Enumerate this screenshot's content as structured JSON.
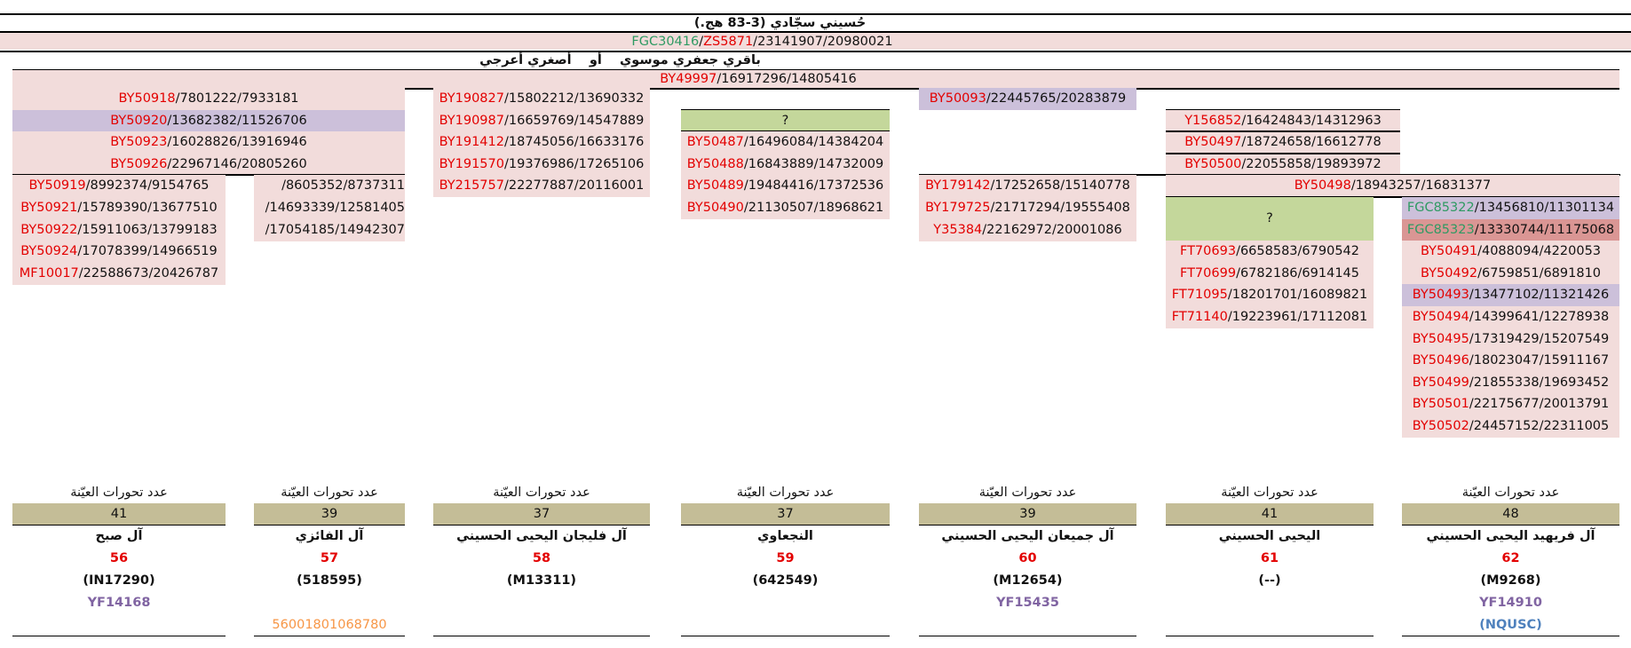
{
  "title": "حُسيني سجّادي (3-83 هج.)",
  "root_snp": {
    "a": "FGC30416",
    "b": "ZS5871",
    "c": "23141907",
    "d": "20980021"
  },
  "subtitle": "باقري جعفري موسوي    أو    أصغري أعرجي",
  "main_snp": {
    "a": "BY49997",
    "b": "16917296",
    "c": "14805416"
  },
  "col1_top": [
    {
      "a": "BY50918",
      "b": "7801222",
      "c": "7933181"
    },
    {
      "a": "BY50920",
      "b": "13682382",
      "c": "11526706"
    },
    {
      "a": "BY50923",
      "b": "16028826",
      "c": "13916946"
    },
    {
      "a": "BY50926",
      "b": "22967146",
      "c": "20805260"
    }
  ],
  "col1a": [
    {
      "a": "BY50919",
      "b": "8992374",
      "c": "9154765"
    },
    {
      "a": "BY50921",
      "b": "15789390",
      "c": "13677510"
    },
    {
      "a": "BY50922",
      "b": "15911063",
      "c": "13799183"
    },
    {
      "a": "BY50924",
      "b": "17078399",
      "c": "14966519"
    },
    {
      "a": "MF10017",
      "b": "22588673",
      "c": "20426787"
    }
  ],
  "col1b": [
    {
      "a": "",
      "b": "8605352",
      "c": "8737311"
    },
    {
      "a": "",
      "b": "14693339",
      "c": "12581405"
    },
    {
      "a": "",
      "b": "17054185",
      "c": "14942307"
    }
  ],
  "col3": [
    {
      "a": "BY190827",
      "b": "15802212",
      "c": "13690332"
    },
    {
      "a": "BY190987",
      "b": "16659769",
      "c": "14547889"
    },
    {
      "a": "BY191412",
      "b": "18745056",
      "c": "16633176"
    },
    {
      "a": "BY191570",
      "b": "19376986",
      "c": "17265106"
    },
    {
      "a": "BY215757",
      "b": "22277887",
      "c": "20116001"
    }
  ],
  "col4_q": "?",
  "col4": [
    {
      "a": "BY50487",
      "b": "16496084",
      "c": "14384204"
    },
    {
      "a": "BY50488",
      "b": "16843889",
      "c": "14732009"
    },
    {
      "a": "BY50489",
      "b": "19484416",
      "c": "17372536"
    },
    {
      "a": "BY50490",
      "b": "21130507",
      "c": "18968621"
    }
  ],
  "right_top": {
    "a": "BY50093",
    "b": "22445765",
    "c": "20283879"
  },
  "col6_top": [
    {
      "a": "Y156852",
      "b": "16424843",
      "c": "14312963"
    },
    {
      "a": "BY50497",
      "b": "18724658",
      "c": "16612778"
    },
    {
      "a": "BY50500",
      "b": "22055858",
      "c": "19893972"
    }
  ],
  "col5": [
    {
      "a": "BY179142",
      "b": "17252658",
      "c": "15140778"
    },
    {
      "a": "BY179725",
      "b": "21717294",
      "c": "19555408"
    },
    {
      "a": "Y35384",
      "b": "22162972",
      "c": "20001086"
    }
  ],
  "mid_snp": {
    "a": "BY50498",
    "b": "18943257",
    "c": "16831377"
  },
  "col6_q": "?",
  "col6": [
    {
      "a": "FT70693",
      "b": "6658583",
      "c": "6790542"
    },
    {
      "a": "FT70699",
      "b": "6782186",
      "c": "6914145"
    },
    {
      "a": "FT71095",
      "b": "18201701",
      "c": "16089821"
    },
    {
      "a": "FT71140",
      "b": "19223961",
      "c": "17112081"
    }
  ],
  "col7_green": [
    {
      "a": "FGC85322",
      "b": "13456810",
      "c": "11301134"
    },
    {
      "a": "FGC85323",
      "b": "13330744",
      "c": "11175068"
    }
  ],
  "col7": [
    {
      "a": "BY50491",
      "b": "4088094",
      "c": "4220053"
    },
    {
      "a": "BY50492",
      "b": "6759851",
      "c": "6891810"
    },
    {
      "a": "BY50493",
      "b": "13477102",
      "c": "11321426"
    },
    {
      "a": "BY50494",
      "b": "14399641",
      "c": "12278938"
    },
    {
      "a": "BY50495",
      "b": "17319429",
      "c": "15207549"
    },
    {
      "a": "BY50496",
      "b": "18023047",
      "c": "15911167"
    },
    {
      "a": "BY50499",
      "b": "21855338",
      "c": "19693452"
    },
    {
      "a": "BY50501",
      "b": "22175677",
      "c": "20013791"
    },
    {
      "a": "BY50502",
      "b": "24457152",
      "c": "22311005"
    }
  ],
  "footer_label": "عدد تحورات العيّنة",
  "footers": [
    {
      "count": "41",
      "family": "آل صبح",
      "num": "56",
      "kit": "(IN17290)",
      "extra": "YF14168",
      "extra2": ""
    },
    {
      "count": "39",
      "family": "آل الفائزي",
      "num": "57",
      "kit": "(518595)",
      "extra": "",
      "extra2": "56001801068780"
    },
    {
      "count": "37",
      "family": "آل فليجان اليحيى الحسيني",
      "num": "58",
      "kit": "(M13311)",
      "extra": "",
      "extra2": ""
    },
    {
      "count": "37",
      "family": "النجعاوي",
      "num": "59",
      "kit": "(642549)",
      "extra": "",
      "extra2": ""
    },
    {
      "count": "39",
      "family": "آل جميعان اليحيى الحسيني",
      "num": "60",
      "kit": "(M12654)",
      "extra": "YF15435",
      "extra2": ""
    },
    {
      "count": "41",
      "family": "اليحيى الحسيني",
      "num": "61",
      "kit": "(--)",
      "extra": "",
      "extra2": ""
    },
    {
      "count": "48",
      "family": "آل فريهيد اليحيى الحسيني",
      "num": "62",
      "kit": "(M9268)",
      "extra": "YF14910",
      "extra2": "(NQUSC)"
    }
  ],
  "colors": {
    "pink": "#f2dcdb",
    "lavender": "#ccc0da",
    "green": "#c4d79b",
    "khaki": "#c4bd97",
    "red": "#e30000",
    "snpgreen": "#2f9a63",
    "purple": "#8064a2",
    "orange": "#f79646",
    "blue": "#4f81bd"
  }
}
